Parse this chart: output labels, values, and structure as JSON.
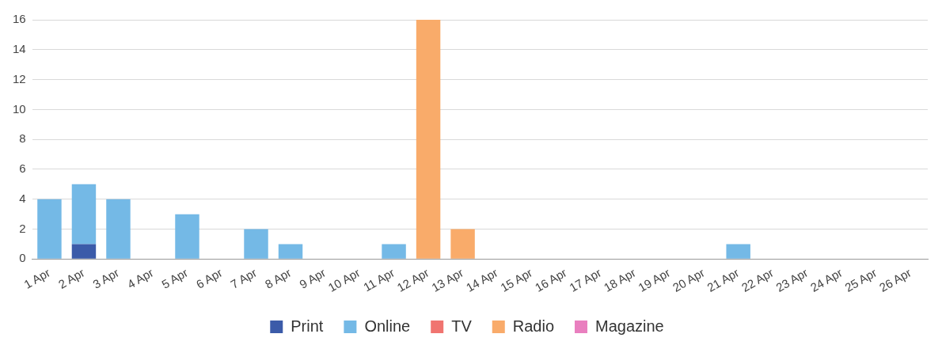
{
  "chart_data": {
    "type": "bar",
    "stacked": true,
    "grid": "y",
    "legend": "bottom",
    "categories": [
      "1 Apr",
      "2 Apr",
      "3 Apr",
      "4 Apr",
      "5 Apr",
      "6 Apr",
      "7 Apr",
      "8 Apr",
      "9 Apr",
      "10 Apr",
      "11 Apr",
      "12 Apr",
      "13 Apr",
      "14 Apr",
      "15 Apr",
      "16 Apr",
      "17 Apr",
      "18 Apr",
      "19 Apr",
      "20 Apr",
      "21 Apr",
      "22 Apr",
      "23 Apr",
      "24 Apr",
      "25 Apr",
      "26 Apr"
    ],
    "ylim": [
      0,
      16
    ],
    "yticks": [
      0,
      2,
      4,
      6,
      8,
      10,
      12,
      14,
      16
    ],
    "series": [
      {
        "name": "Print",
        "color": "#3b5ba9",
        "values": [
          0,
          1,
          0,
          0,
          0,
          0,
          0,
          0,
          0,
          0,
          0,
          0,
          0,
          0,
          0,
          0,
          0,
          0,
          0,
          0,
          0,
          0,
          0,
          0,
          0,
          0
        ]
      },
      {
        "name": "Online",
        "color": "#74b9e6",
        "values": [
          4,
          4,
          4,
          0,
          3,
          0,
          2,
          1,
          0,
          0,
          1,
          0,
          0,
          0,
          0,
          0,
          0,
          0,
          0,
          0,
          1,
          0,
          0,
          0,
          0,
          0
        ]
      },
      {
        "name": "TV",
        "color": "#f07470",
        "values": [
          0,
          0,
          0,
          0,
          0,
          0,
          0,
          0,
          0,
          0,
          0,
          0,
          0,
          0,
          0,
          0,
          0,
          0,
          0,
          0,
          0,
          0,
          0,
          0,
          0,
          0
        ]
      },
      {
        "name": "Radio",
        "color": "#f9ab6a",
        "values": [
          0,
          0,
          0,
          0,
          0,
          0,
          0,
          0,
          0,
          0,
          0,
          16,
          2,
          0,
          0,
          0,
          0,
          0,
          0,
          0,
          0,
          0,
          0,
          0,
          0,
          0
        ]
      },
      {
        "name": "Magazine",
        "color": "#e97fbf",
        "values": [
          0,
          0,
          0,
          0,
          0,
          0,
          0,
          0,
          0,
          0,
          0,
          0,
          0,
          0,
          0,
          0,
          0,
          0,
          0,
          0,
          0,
          0,
          0,
          0,
          0,
          0
        ]
      }
    ]
  }
}
